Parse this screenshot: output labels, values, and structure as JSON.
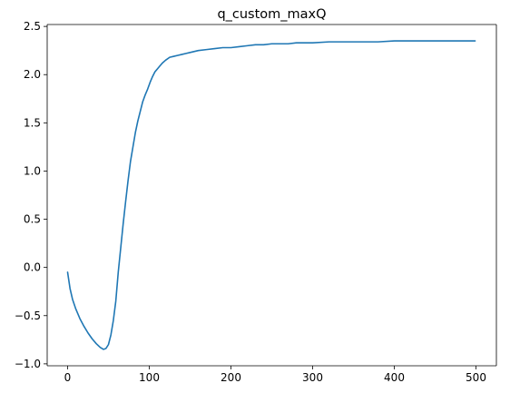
{
  "chart_data": {
    "type": "line",
    "title": "q_custom_maxQ",
    "xlabel": "",
    "ylabel": "",
    "xlim": [
      -25,
      525
    ],
    "ylim": [
      -1.02,
      2.52
    ],
    "xticks": [
      0,
      100,
      200,
      300,
      400,
      500
    ],
    "yticks": [
      -1.0,
      -0.5,
      0.0,
      0.5,
      1.0,
      1.5,
      2.0,
      2.5
    ],
    "xtick_labels": [
      "0",
      "100",
      "200",
      "300",
      "400",
      "500"
    ],
    "ytick_labels": [
      "−1.0",
      "−0.5",
      "0.0",
      "0.5",
      "1.0",
      "1.5",
      "2.0",
      "2.5"
    ],
    "grid": false,
    "series_color": "#1f77b4",
    "series": [
      {
        "x": [
          0,
          3,
          6,
          10,
          15,
          20,
          25,
          30,
          35,
          40,
          44,
          47,
          50,
          53,
          56,
          59,
          62,
          65,
          68,
          71,
          74,
          77,
          80,
          83,
          86,
          89,
          92,
          95,
          98,
          101,
          104,
          107,
          110,
          113,
          116,
          120,
          125,
          130,
          135,
          140,
          145,
          150,
          160,
          170,
          180,
          190,
          200,
          210,
          220,
          230,
          240,
          250,
          260,
          270,
          280,
          290,
          300,
          320,
          340,
          360,
          380,
          400,
          420,
          440,
          460,
          480,
          499
        ],
        "y": [
          -0.05,
          -0.22,
          -0.33,
          -0.43,
          -0.53,
          -0.61,
          -0.68,
          -0.74,
          -0.79,
          -0.83,
          -0.85,
          -0.84,
          -0.8,
          -0.7,
          -0.55,
          -0.35,
          -0.05,
          0.2,
          0.45,
          0.68,
          0.9,
          1.1,
          1.25,
          1.4,
          1.52,
          1.62,
          1.72,
          1.79,
          1.85,
          1.92,
          1.98,
          2.03,
          2.06,
          2.09,
          2.12,
          2.15,
          2.18,
          2.19,
          2.2,
          2.21,
          2.22,
          2.23,
          2.25,
          2.26,
          2.27,
          2.28,
          2.28,
          2.29,
          2.3,
          2.31,
          2.31,
          2.32,
          2.32,
          2.32,
          2.33,
          2.33,
          2.33,
          2.34,
          2.34,
          2.34,
          2.34,
          2.35,
          2.35,
          2.35,
          2.35,
          2.35,
          2.35
        ]
      }
    ]
  }
}
